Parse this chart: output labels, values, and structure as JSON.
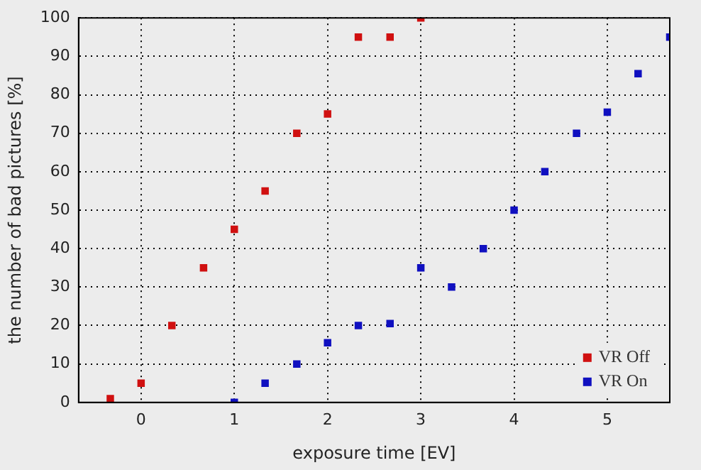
{
  "chart_data": {
    "type": "scatter",
    "xlabel": "exposure time [EV]",
    "ylabel": "the number of bad pictures [%]",
    "xlim": [
      -0.67,
      5.67
    ],
    "xticks": [
      0,
      1,
      2,
      3,
      4,
      5
    ],
    "ylim": [
      0,
      100
    ],
    "yticks": [
      0,
      10,
      20,
      30,
      40,
      50,
      60,
      70,
      80,
      90,
      100
    ],
    "grid": true,
    "legend": "bottom right",
    "marker": "square",
    "series": [
      {
        "name": "VR Off",
        "color": "#d01010",
        "x": [
          -0.33,
          0,
          0.33,
          0.67,
          1,
          1.33,
          1.67,
          2,
          2.33,
          2.67,
          3
        ],
        "values": [
          1,
          5,
          20,
          35,
          45,
          55,
          70,
          75,
          95,
          95,
          100
        ]
      },
      {
        "name": "VR On",
        "color": "#1010c0",
        "x": [
          1,
          1.33,
          1.67,
          2,
          2.33,
          2.67,
          3,
          3.33,
          3.67,
          4,
          4.33,
          4.67,
          5,
          5.33,
          5.67
        ],
        "values": [
          0,
          5,
          10,
          15.5,
          20,
          20.5,
          35,
          30,
          40,
          50,
          60,
          70,
          75.5,
          85.5,
          95
        ]
      }
    ]
  }
}
